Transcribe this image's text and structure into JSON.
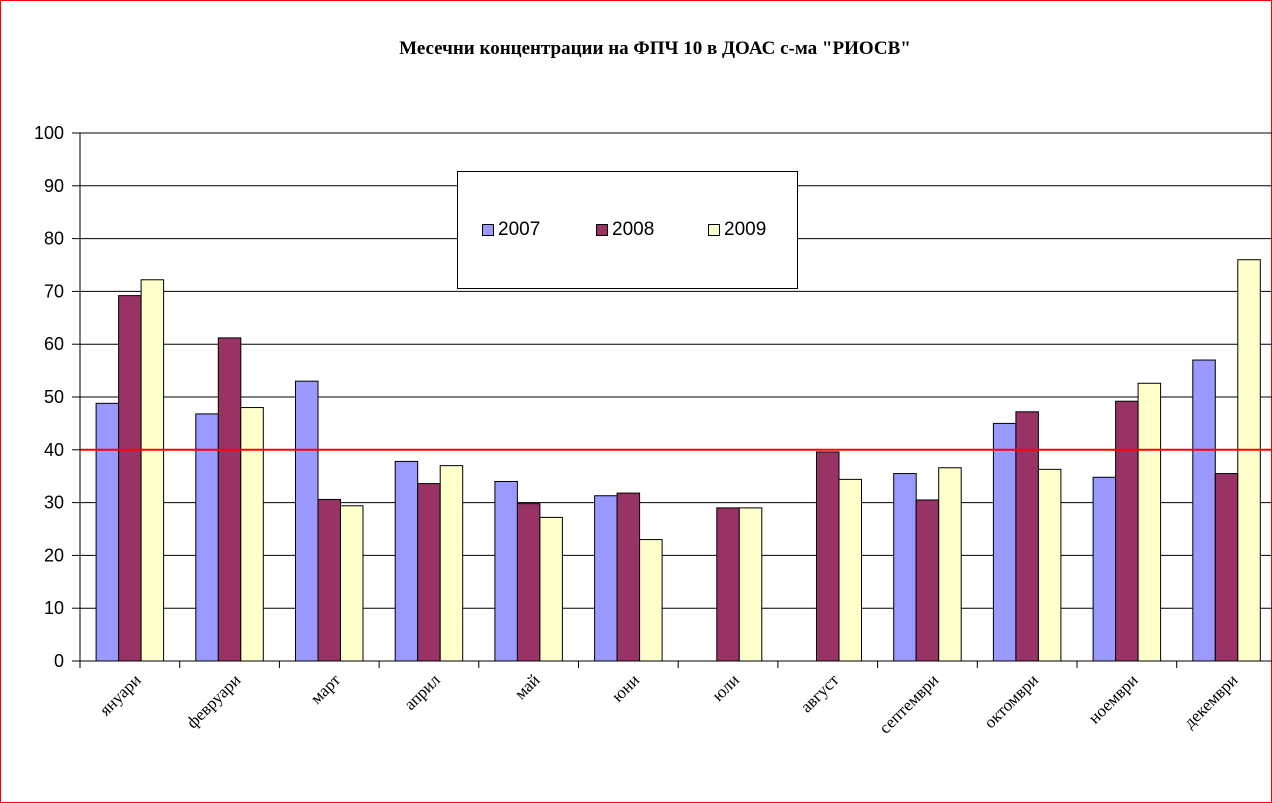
{
  "chart_data": {
    "type": "bar",
    "title": "Месечни концентрации на ФПЧ 10 в ДОАС с-ма  \"РИОСВ\"",
    "xlabel": "",
    "ylabel": "",
    "ylim": [
      0,
      100
    ],
    "yticks": [
      "0",
      "10",
      "20",
      "30",
      "40",
      "50",
      "60",
      "70",
      "80",
      "90",
      "100"
    ],
    "categories": [
      "януари",
      "февруари",
      "март",
      "април",
      "май",
      "юни",
      "юли",
      "август",
      "септември",
      "октомври",
      "ноември",
      "декември"
    ],
    "series": [
      {
        "name": "2007",
        "color": "#9999ff",
        "values": [
          48.8,
          46.8,
          53.0,
          37.8,
          34.0,
          31.3,
          null,
          null,
          35.5,
          45.0,
          34.8,
          57.0
        ]
      },
      {
        "name": "2008",
        "color": "#993366",
        "values": [
          69.2,
          61.2,
          30.6,
          33.6,
          29.8,
          31.8,
          29.0,
          39.6,
          30.5,
          47.2,
          49.2,
          35.5
        ]
      },
      {
        "name": "2009",
        "color": "#ffffcc",
        "values": [
          72.2,
          48.0,
          29.4,
          37.0,
          27.2,
          23.0,
          29.0,
          34.4,
          36.6,
          36.3,
          52.6,
          76.0
        ]
      }
    ],
    "reference_line": {
      "value": 40,
      "color": "#ff0000"
    },
    "grid": true,
    "legend_position": "top-center"
  }
}
